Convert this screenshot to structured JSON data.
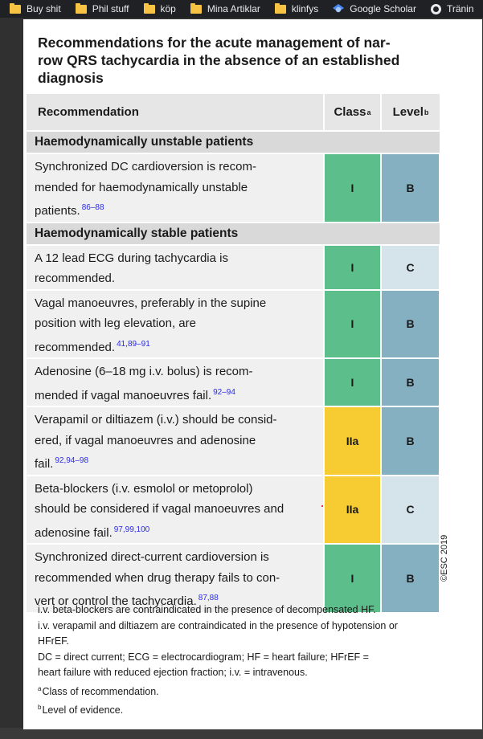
{
  "colors": {
    "class_I": "#5cbf8b",
    "class_IIa": "#f7cc32",
    "level_B": "#85b0c2",
    "level_C": "#d4e4ea"
  },
  "bookmarks": [
    {
      "label": "Buy shit",
      "icon": "folder-icon"
    },
    {
      "label": "Phil stuff",
      "icon": "folder-icon"
    },
    {
      "label": "köp",
      "icon": "folder-icon"
    },
    {
      "label": "Mina Artiklar",
      "icon": "folder-icon"
    },
    {
      "label": "klinfys",
      "icon": "folder-icon"
    },
    {
      "label": "Google Scholar",
      "icon": "google-scholar-icon"
    },
    {
      "label": "Tränin",
      "icon": "gear-icon"
    }
  ],
  "document": {
    "title_line1": "Recommendations for the acute management of nar-",
    "title_line2": "row QRS tachycardia in the absence of an established",
    "title_line3": "diagnosis",
    "header": {
      "recommendation": "Recommendation",
      "class": "Class",
      "class_sup": "a",
      "level": "Level",
      "level_sup": "b"
    },
    "section_unstable": "Haemodynamically unstable patients",
    "section_stable": "Haemodynamically stable patients",
    "rows": [
      {
        "lines": [
          "Synchronized DC cardioversion is recom-",
          "mended for haemodynamically unstable",
          "patients."
        ],
        "refs": "86–88",
        "class": "I",
        "level": "B"
      },
      {
        "lines": [
          "A 12 lead ECG during tachycardia is",
          "recommended."
        ],
        "refs": "",
        "class": "I",
        "level": "C"
      },
      {
        "lines": [
          "Vagal manoeuvres, preferably in the supine",
          "position with leg elevation, are",
          "recommended."
        ],
        "refs": "41,89–91",
        "class": "I",
        "level": "B"
      },
      {
        "lines": [
          "Adenosine (6–18 mg i.v. bolus) is recom-",
          "mended if vagal manoeuvres fail."
        ],
        "refs": "92–94",
        "class": "I",
        "level": "B"
      },
      {
        "lines": [
          "Verapamil or diltiazem (i.v.) should be consid-",
          "ered, if vagal manoeuvres and adenosine",
          "fail."
        ],
        "refs": "92,94–98",
        "class": "IIa",
        "level": "B"
      },
      {
        "lines": [
          "Beta-blockers (i.v. esmolol or metoprolol)",
          "should be considered if vagal manoeuvres and",
          "adenosine fail."
        ],
        "refs": "97,99,100",
        "class": "IIa",
        "level": "C"
      },
      {
        "lines": [
          "Synchronized direct-current cardioversion is",
          "recommended when drug therapy fails to con-",
          "vert or control the tachycardia."
        ],
        "refs": "87,88",
        "class": "I",
        "level": "B"
      }
    ],
    "esc_mark": "©ESC 2019",
    "footnotes": {
      "line1": "i.v. beta-blockers are contraindicated in the presence of decompensated HF.",
      "line2": "i.v. verapamil and diltiazem are contraindicated in the presence of hypotension or",
      "line3": "HFrEF.",
      "line4": "DC = direct current; ECG = electrocardiogram; HF = heart failure; HFrEF =",
      "line5": "heart failure with reduced ejection fraction; i.v. = intravenous.",
      "class_sup": "a",
      "class_def": "Class of recommendation.",
      "level_sup": "b",
      "level_def": "Level of evidence."
    }
  }
}
